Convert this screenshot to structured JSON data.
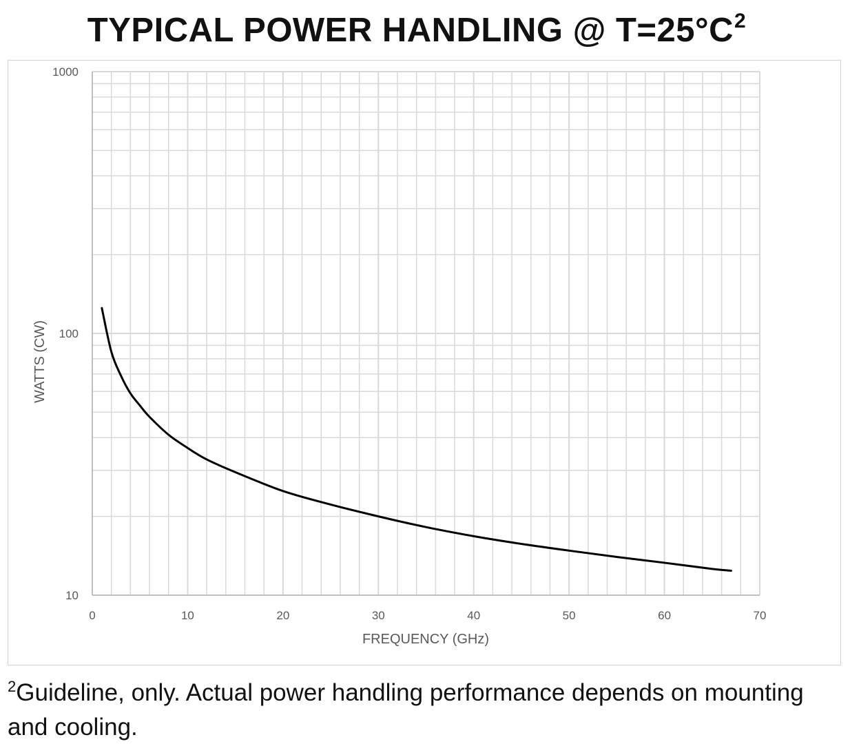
{
  "title": {
    "text": "TYPICAL POWER HANDLING @ T=25°C",
    "superscript": "2"
  },
  "footnote": {
    "marker": "2",
    "text": "Guideline, only.  Actual power handling performance depends on mounting and cooling."
  },
  "colors": {
    "grid": "#d9d9d9",
    "axis": "#bfbfbf",
    "curve": "#000000",
    "text": "#595959"
  },
  "chart_data": {
    "type": "line",
    "title": "TYPICAL POWER HANDLING @ T=25°C",
    "xlabel": "FREQUENCY (GHz)",
    "ylabel": "WATTS (CW)",
    "xlim": [
      0,
      70
    ],
    "ylim": [
      10,
      1000
    ],
    "y_scale": "log",
    "grid": true,
    "x_ticks": [
      "0",
      "10",
      "20",
      "30",
      "40",
      "50",
      "60",
      "70"
    ],
    "x_minor_step": 2,
    "y_ticks": [
      "10",
      "100",
      "1000"
    ],
    "series": [
      {
        "x": [
          1,
          2,
          3,
          4,
          5,
          6,
          8,
          10,
          12,
          15,
          20,
          25,
          30,
          35,
          40,
          45,
          50,
          55,
          60,
          65,
          67
        ],
        "y": [
          125,
          85,
          69,
          59,
          53,
          48,
          41,
          36.5,
          33,
          29.5,
          25,
          22.2,
          20,
          18.2,
          16.8,
          15.7,
          14.8,
          14,
          13.3,
          12.6,
          12.4
        ]
      }
    ]
  }
}
